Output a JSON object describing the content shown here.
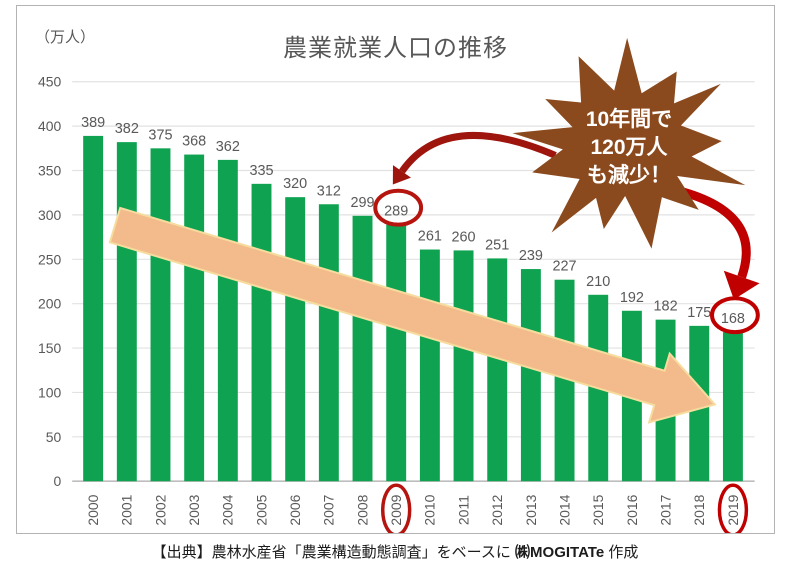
{
  "page": {
    "unit_label": "（万人）",
    "title": "農業就業人口の推移",
    "source": {
      "prefix": "【出典】農林水産省「農業構造動態調査」をベースに ",
      "brand": "㈱MOGITATe",
      "suffix": " 作成"
    }
  },
  "chart_data": {
    "type": "bar",
    "title": "農業就業人口の推移",
    "unit": "万人",
    "categories": [
      "2000",
      "2001",
      "2002",
      "2003",
      "2004",
      "2005",
      "2006",
      "2007",
      "2008",
      "2009",
      "2010",
      "2011",
      "2012",
      "2013",
      "2014",
      "2015",
      "2016",
      "2017",
      "2018",
      "2019"
    ],
    "values": [
      389,
      382,
      375,
      368,
      362,
      335,
      320,
      312,
      299,
      289,
      261,
      260,
      251,
      239,
      227,
      210,
      192,
      182,
      175,
      168
    ],
    "ylabel": "（万人）",
    "ylim": [
      0,
      450
    ],
    "ytick_step": 50,
    "grid": true,
    "legend": "none",
    "bar_color": "#0fa351",
    "grid_color": "#e2e2e2",
    "axis_color": "#bdbdbd",
    "label_color": "#595959",
    "highlights": [
      {
        "year": "2009",
        "value": 289,
        "color": "#b5140f"
      },
      {
        "year": "2019",
        "value": 168,
        "color": "#c00000"
      }
    ],
    "annotations": {
      "starburst": {
        "lines": [
          "10年間で",
          "120万人",
          "も減少！"
        ],
        "fill": "#8b4a1e",
        "text_color": "#ffffff"
      },
      "trend_arrow": {
        "fill": "#f3ba8c",
        "stroke": "#f6dc9d"
      },
      "callout_arrows": [
        {
          "from": "starburst",
          "to": "2009",
          "color": "#9e150e"
        },
        {
          "from": "starburst",
          "to": "2019",
          "color": "#c00000"
        }
      ]
    }
  }
}
